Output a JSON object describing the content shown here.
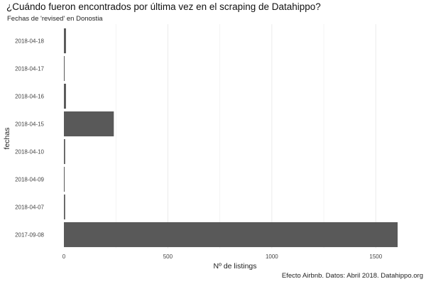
{
  "chart_data": {
    "type": "bar",
    "orientation": "horizontal",
    "title": "¿Cuándo fueron encontrados por última vez en el scraping de Datahippo?",
    "subtitle": "Fechas de 'revised' en Donostia",
    "caption": "Efecto Airbnb. Datos: Abril 2018. Datahippo.org",
    "xlabel": "Nº de listings",
    "ylabel": "fechas",
    "categories": [
      "2018-04-18",
      "2018-04-17",
      "2018-04-16",
      "2018-04-15",
      "2018-04-10",
      "2018-04-09",
      "2018-04-07",
      "2017-09-08"
    ],
    "values": [
      10,
      3,
      10,
      240,
      6,
      3,
      6,
      1605
    ],
    "xlim": [
      0,
      1680
    ],
    "xticks": [
      0,
      500,
      1000,
      1500
    ],
    "grid": true,
    "bar_color": "#595959",
    "grid_color": "#ebebeb"
  }
}
